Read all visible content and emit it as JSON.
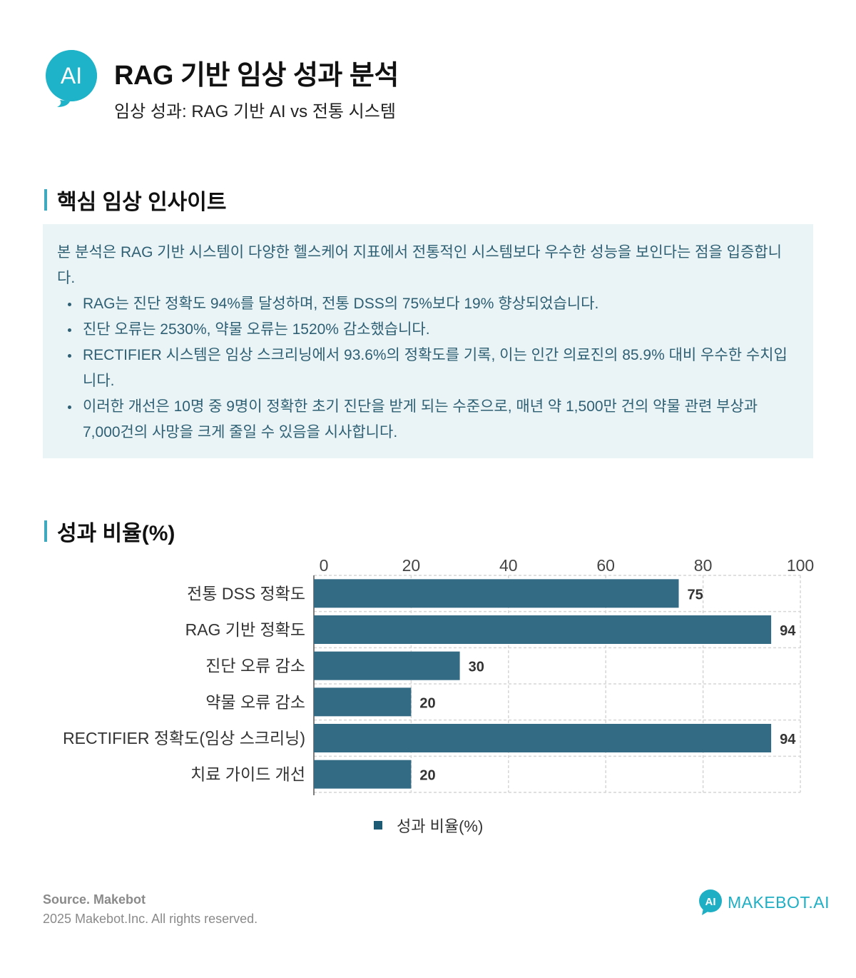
{
  "header": {
    "logo_text": "AI",
    "title": "RAG 기반 임상 성과 분석",
    "subtitle": "임상 성과: RAG 기반 AI vs 전통 시스템"
  },
  "insights": {
    "heading": "핵심 임상 인사이트",
    "intro": "본 분석은 RAG 기반 시스템이 다양한 헬스케어 지표에서 전통적인 시스템보다 우수한 성능을 보인다는 점을 입증합니다.",
    "bullets": [
      "RAG는 진단 정확도 94%를 달성하며, 전통 DSS의 75%보다 19% 향상되었습니다.",
      "진단 오류는 2530%, 약물 오류는 1520% 감소했습니다.",
      "RECTIFIER 시스템은 임상 스크리닝에서 93.6%의 정확도를 기록, 이는 인간 의료진의 85.9% 대비 우수한 수치입니다.",
      "이러한 개선은 10명 중 9명이 정확한 초기 진단을 받게 되는 수준으로, 매년 약 1,500만 건의 약물 관련 부상과 7,000건의 사망을 크게 줄일 수 있음을 시사합니다."
    ]
  },
  "chart_section": {
    "heading": "성과 비율(%)"
  },
  "chart_data": {
    "type": "bar",
    "orientation": "horizontal",
    "categories": [
      "전통 DSS 정확도",
      "RAG 기반 정확도",
      "진단 오류 감소",
      "약물 오류 감소",
      "RECTIFIER 정확도(임상 스크리닝)",
      "치료 가이드 개선"
    ],
    "series": [
      {
        "name": "성과 비율(%)",
        "values": [
          75,
          94,
          30,
          20,
          94,
          20
        ]
      }
    ],
    "xlim": [
      0,
      100
    ],
    "x_ticks": [
      "0",
      "20",
      "40",
      "60",
      "80",
      "100"
    ],
    "x_axis_position": "top",
    "grid": true,
    "legend_position": "bottom",
    "bar_color": "#336b85",
    "legend_color": "#1d5a73"
  },
  "footer": {
    "source": "Source. Makebot",
    "copyright": "2025 Makebot.Inc. All rights reserved.",
    "brand": "MAKEBOT.AI",
    "brand_color": "#1eafc4"
  }
}
